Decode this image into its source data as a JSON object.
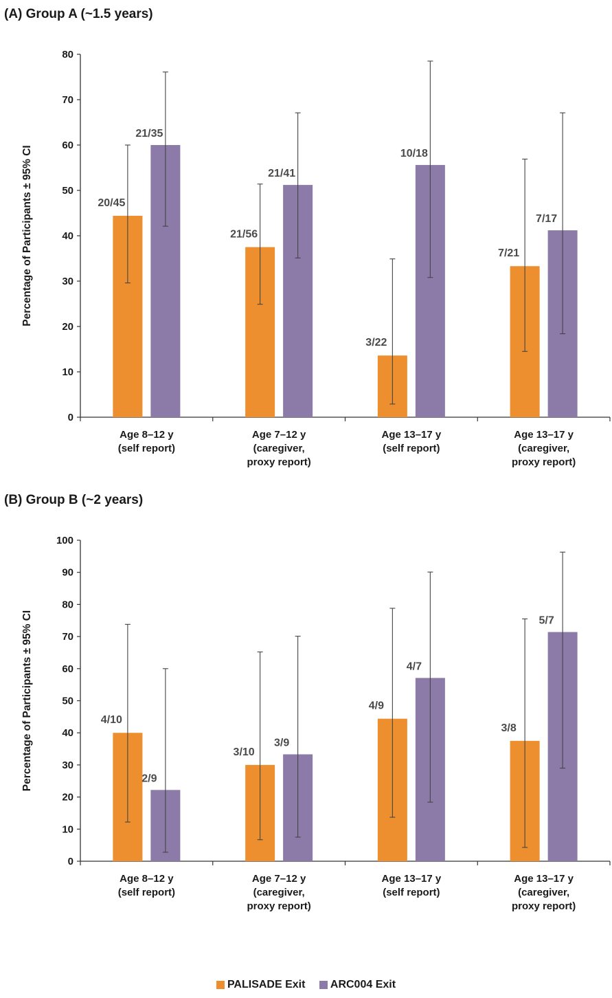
{
  "panels": [
    {
      "title": "(A) Group A (~1.5 years)"
    },
    {
      "title": "(B) Group B (~2 years)"
    }
  ],
  "legend": {
    "items": [
      {
        "label": "PALISADE Exit",
        "color": "#ee8f2f"
      },
      {
        "label": "ARC004 Exit",
        "color": "#8c7aa8"
      }
    ]
  },
  "chart_data": [
    {
      "type": "bar",
      "title": "(A) Group A (~1.5 years)",
      "ylabel": "Percentage of Participants ± 95% CI",
      "ylim": [
        0,
        80
      ],
      "yticks": [
        0,
        10,
        20,
        30,
        40,
        50,
        60,
        70,
        80
      ],
      "categories": [
        [
          "Age 8–12 y",
          "(self report)"
        ],
        [
          "Age 7–12 y",
          "(caregiver,",
          "proxy report)"
        ],
        [
          "Age 13–17 y",
          "(self report)"
        ],
        [
          "Age 13–17 y",
          "(caregiver,",
          "proxy report)"
        ]
      ],
      "series": [
        {
          "name": "PALISADE Exit",
          "color": "#ee8f2f",
          "values": [
            44.4,
            37.5,
            13.6,
            33.3
          ],
          "ci_low": [
            29.6,
            24.9,
            2.9,
            14.5
          ],
          "ci_high": [
            60.0,
            51.4,
            34.9,
            56.9
          ],
          "labels": [
            "20/45",
            "21/56",
            "3/22",
            "7/21"
          ]
        },
        {
          "name": "ARC004 Exit",
          "color": "#8c7aa8",
          "values": [
            60.0,
            51.2,
            55.6,
            41.2
          ],
          "ci_low": [
            42.1,
            35.1,
            30.8,
            18.4
          ],
          "ci_high": [
            76.1,
            67.1,
            78.5,
            67.1
          ],
          "labels": [
            "21/35",
            "21/41",
            "10/18",
            "7/17"
          ]
        }
      ]
    },
    {
      "type": "bar",
      "title": "(B) Group B (~2 years)",
      "ylabel": "Percentage of Participants ± 95% CI",
      "ylim": [
        0,
        100
      ],
      "yticks": [
        0,
        10,
        20,
        30,
        40,
        50,
        60,
        70,
        80,
        90,
        100
      ],
      "categories": [
        [
          "Age 8–12 y",
          "(self report)"
        ],
        [
          "Age 7–12 y",
          "(caregiver,",
          "proxy report)"
        ],
        [
          "Age 13–17 y",
          "(self report)"
        ],
        [
          "Age 13–17 y",
          "(caregiver,",
          "proxy report)"
        ]
      ],
      "series": [
        {
          "name": "PALISADE Exit",
          "color": "#ee8f2f",
          "values": [
            40.0,
            30.0,
            44.4,
            37.5
          ],
          "ci_low": [
            12.2,
            6.7,
            13.7,
            4.3
          ],
          "ci_high": [
            73.8,
            65.2,
            78.8,
            75.5
          ],
          "labels": [
            "4/10",
            "3/10",
            "4/9",
            "3/8"
          ]
        },
        {
          "name": "ARC004 Exit",
          "color": "#8c7aa8",
          "values": [
            22.2,
            33.3,
            57.1,
            71.4
          ],
          "ci_low": [
            2.8,
            7.5,
            18.4,
            29.0
          ],
          "ci_high": [
            60.0,
            70.1,
            90.1,
            96.3
          ],
          "labels": [
            "2/9",
            "3/9",
            "4/7",
            "5/7"
          ]
        }
      ]
    }
  ]
}
